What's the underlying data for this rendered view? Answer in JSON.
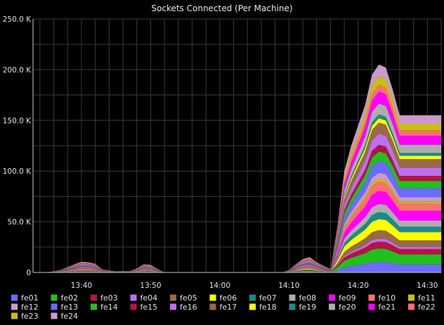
{
  "chart_data": {
    "type": "area",
    "stacked": true,
    "title": "Sockets Connected (Per Machine)",
    "xlabel": "",
    "ylabel": "",
    "ylim": [
      0,
      250000
    ],
    "y_ticks": [
      0,
      50000,
      100000,
      150000,
      200000,
      250000
    ],
    "y_tick_labels": [
      "0",
      "50.0 K",
      "100.0 K",
      "150.0 K",
      "200.0 K",
      "250.0 K"
    ],
    "x_range": [
      "13:33",
      "14:32"
    ],
    "x_ticks": [
      "13:40",
      "13:50",
      "14:00",
      "14:10",
      "14:20",
      "14:30"
    ],
    "grid": true,
    "legend_position": "bottom",
    "sample_times": [
      "13:35",
      "13:37",
      "13:39",
      "13:40",
      "13:41",
      "13:42",
      "13:43",
      "13:45",
      "13:47",
      "13:48",
      "13:49",
      "13:50",
      "13:51",
      "13:52",
      "13:53",
      "13:54",
      "13:55",
      "13:56",
      "14:09",
      "14:10",
      "14:11",
      "14:12",
      "14:13",
      "14:14",
      "14:15",
      "14:16",
      "14:17",
      "14:18",
      "14:19",
      "14:20",
      "14:21",
      "14:22",
      "14:23",
      "14:24",
      "14:25",
      "14:26",
      "14:27",
      "14:28",
      "14:29",
      "14:29.5",
      "14:30",
      "14:30.5",
      "14:31",
      "14:32"
    ],
    "totals": [
      0,
      2500,
      8000,
      10500,
      10000,
      8500,
      3000,
      1000,
      1500,
      4000,
      8000,
      7500,
      3500,
      0,
      0,
      0,
      0,
      0,
      0,
      2500,
      8000,
      13000,
      15000,
      10000,
      6500,
      3500,
      45000,
      100000,
      125000,
      145000,
      165000,
      195000,
      205000,
      202000,
      180000,
      155000,
      155000,
      155000,
      155000,
      155000,
      155000,
      155000,
      155000,
      155000
    ],
    "series": [
      {
        "name": "fe01",
        "color": "#6b6bff"
      },
      {
        "name": "fe02",
        "color": "#22c01f"
      },
      {
        "name": "fe03",
        "color": "#b8133f"
      },
      {
        "name": "fe04",
        "color": "#bd6ff0"
      },
      {
        "name": "fe05",
        "color": "#9a6a44"
      },
      {
        "name": "fe06",
        "color": "#ffff00"
      },
      {
        "name": "fe07",
        "color": "#1a8b8b"
      },
      {
        "name": "fe08",
        "color": "#adadad"
      },
      {
        "name": "fe09",
        "color": "#ff00ff"
      },
      {
        "name": "fe10",
        "color": "#ff7070"
      },
      {
        "name": "fe11",
        "color": "#c8c00e"
      },
      {
        "name": "fe12",
        "color": "#cc99cc"
      },
      {
        "name": "fe13",
        "color": "#6b6bff"
      },
      {
        "name": "fe14",
        "color": "#22c01f"
      },
      {
        "name": "fe15",
        "color": "#b8133f"
      },
      {
        "name": "fe16",
        "color": "#bd6ff0"
      },
      {
        "name": "fe17",
        "color": "#9a6a44"
      },
      {
        "name": "fe18",
        "color": "#ffff00"
      },
      {
        "name": "fe19",
        "color": "#1a8b8b"
      },
      {
        "name": "fe20",
        "color": "#adadad"
      },
      {
        "name": "fe21",
        "color": "#ff00ff"
      },
      {
        "name": "fe22",
        "color": "#ff7070"
      },
      {
        "name": "fe23",
        "color": "#c8c00e"
      },
      {
        "name": "fe24",
        "color": "#cc99cc"
      }
    ]
  }
}
